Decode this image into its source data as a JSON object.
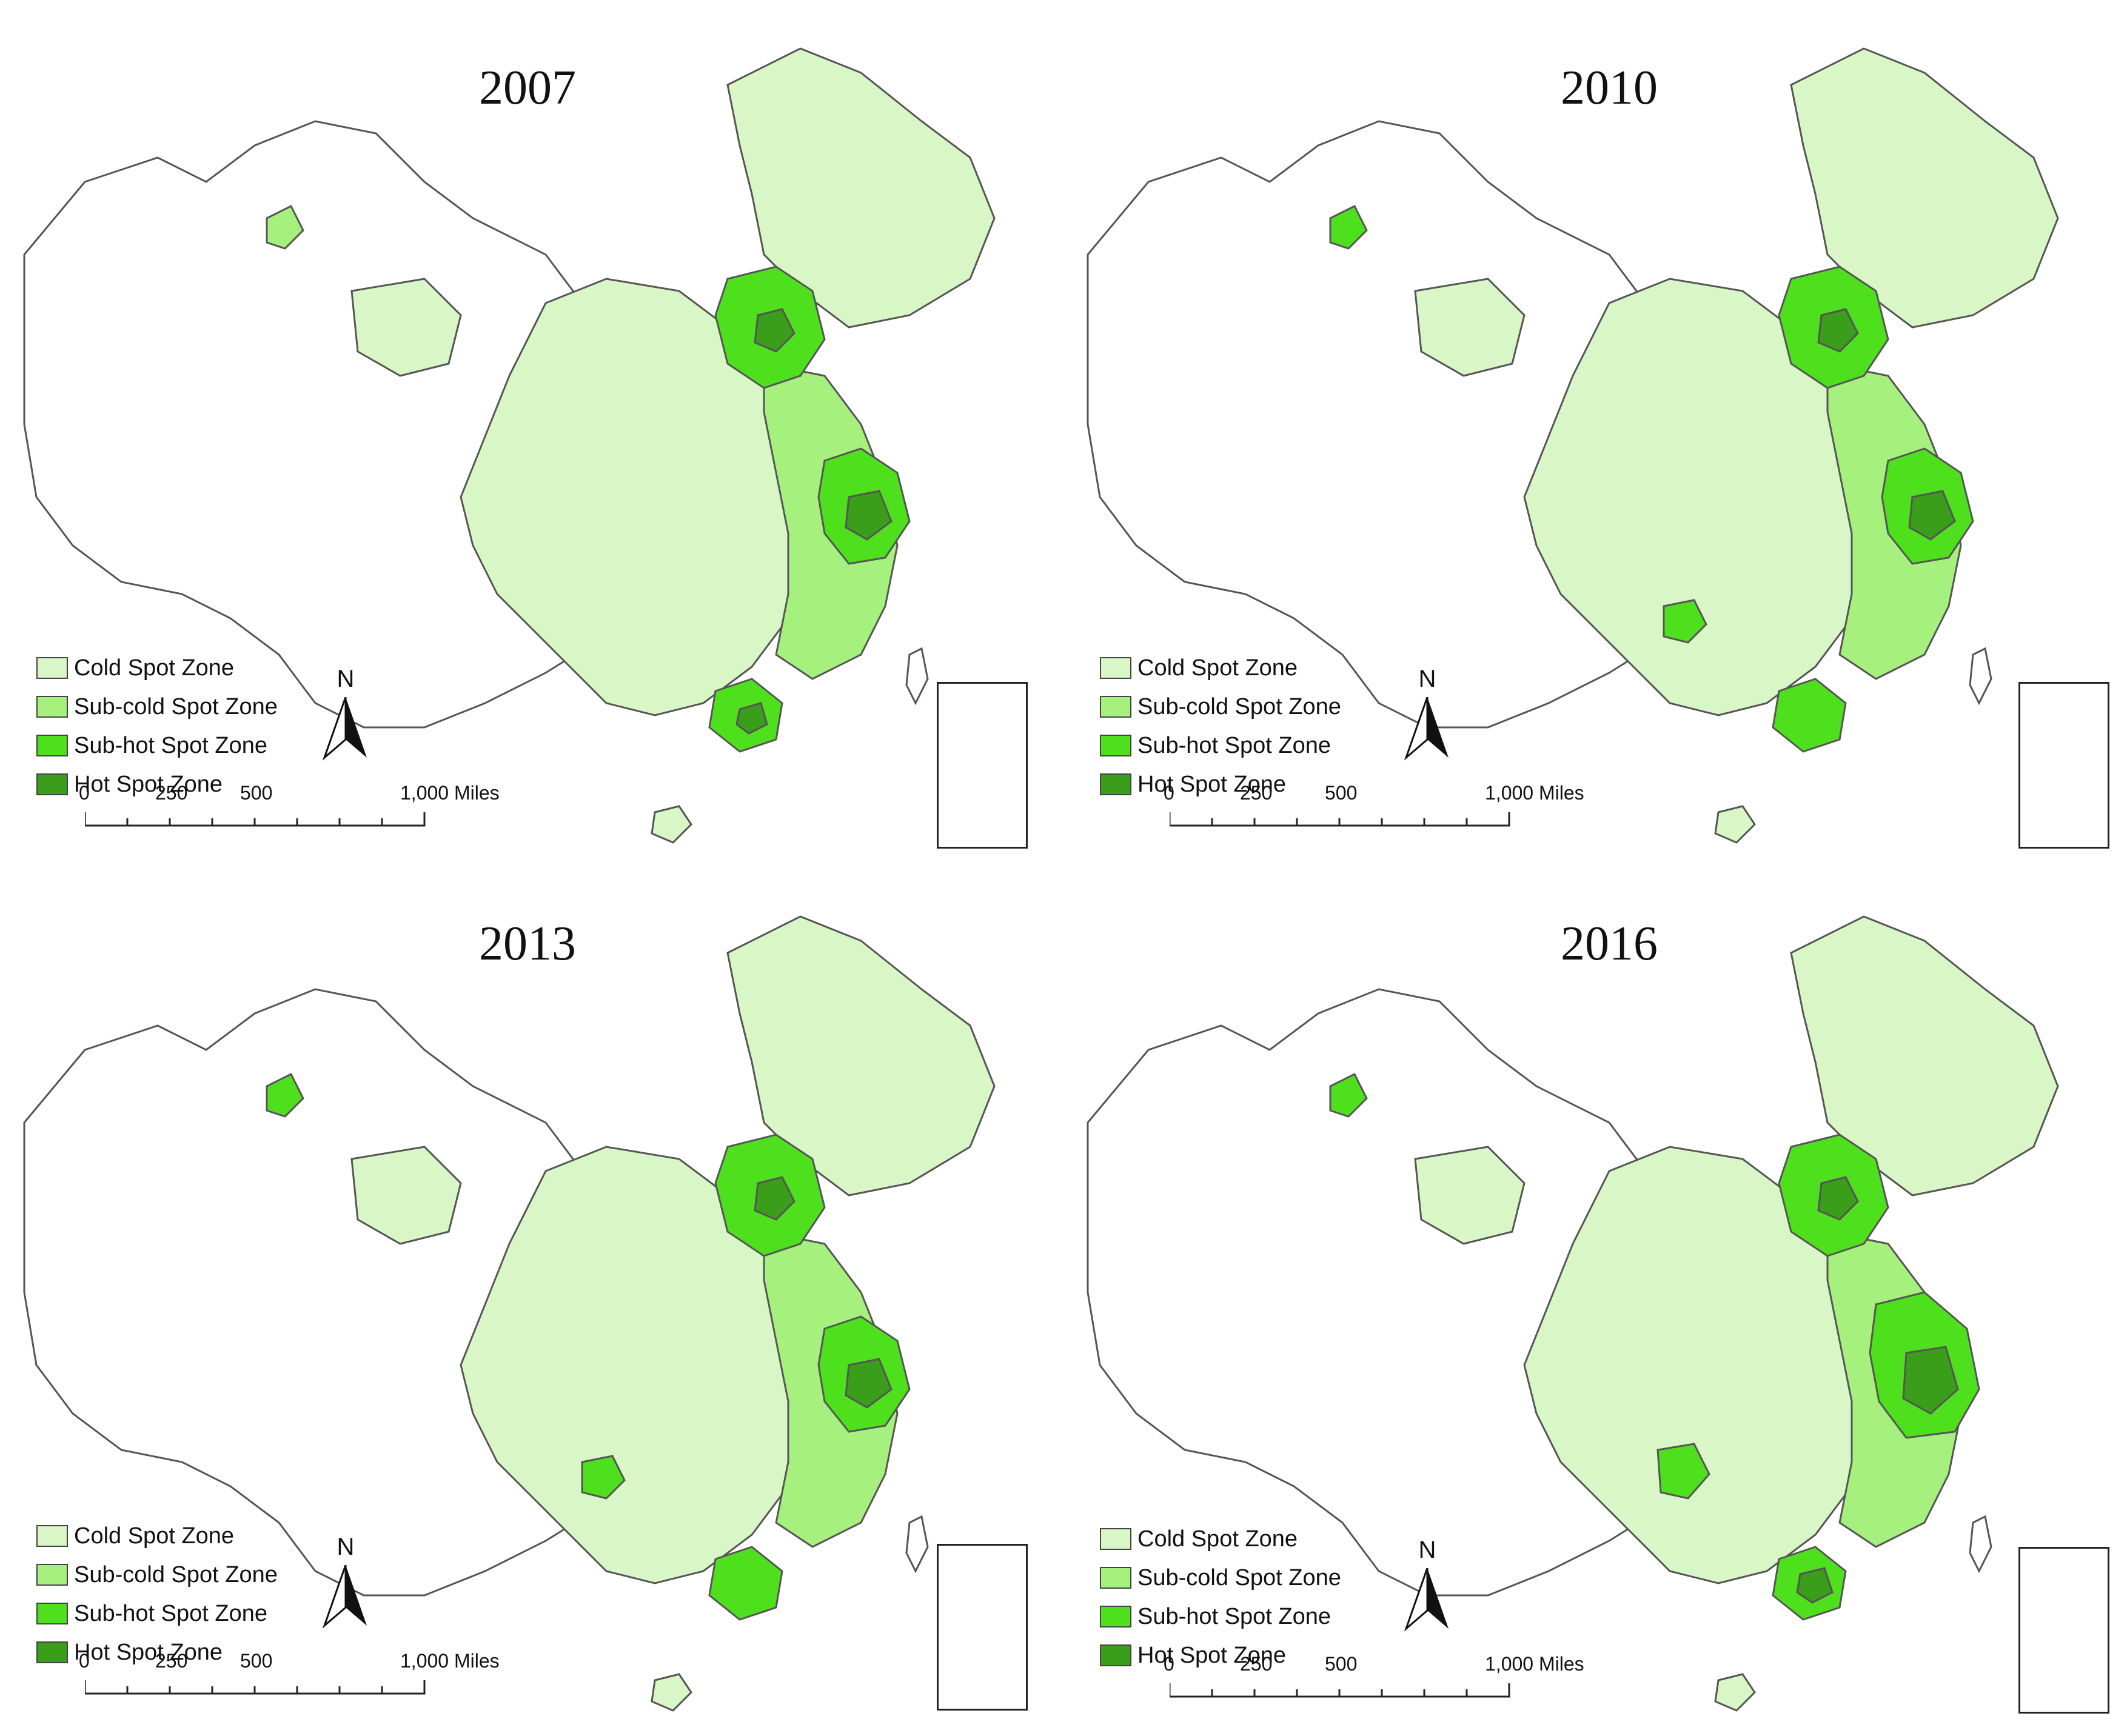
{
  "legend": {
    "items": [
      {
        "label": "Cold Spot Zone",
        "color": "#d9f7c6"
      },
      {
        "label": "Sub-cold Spot Zone",
        "color": "#a6f07e"
      },
      {
        "label": "Sub-hot Spot Zone",
        "color": "#4fe01d"
      },
      {
        "label": "Hot Spot Zone",
        "color": "#3a9e1a"
      }
    ]
  },
  "north_arrow": {
    "label": "N"
  },
  "scale": {
    "ticks": [
      "0",
      "250",
      "500",
      "1,000 Miles"
    ]
  },
  "boundary_color": "#555555",
  "panels": [
    {
      "year": "2007"
    },
    {
      "year": "2010"
    },
    {
      "year": "2013"
    },
    {
      "year": "2016"
    }
  ]
}
